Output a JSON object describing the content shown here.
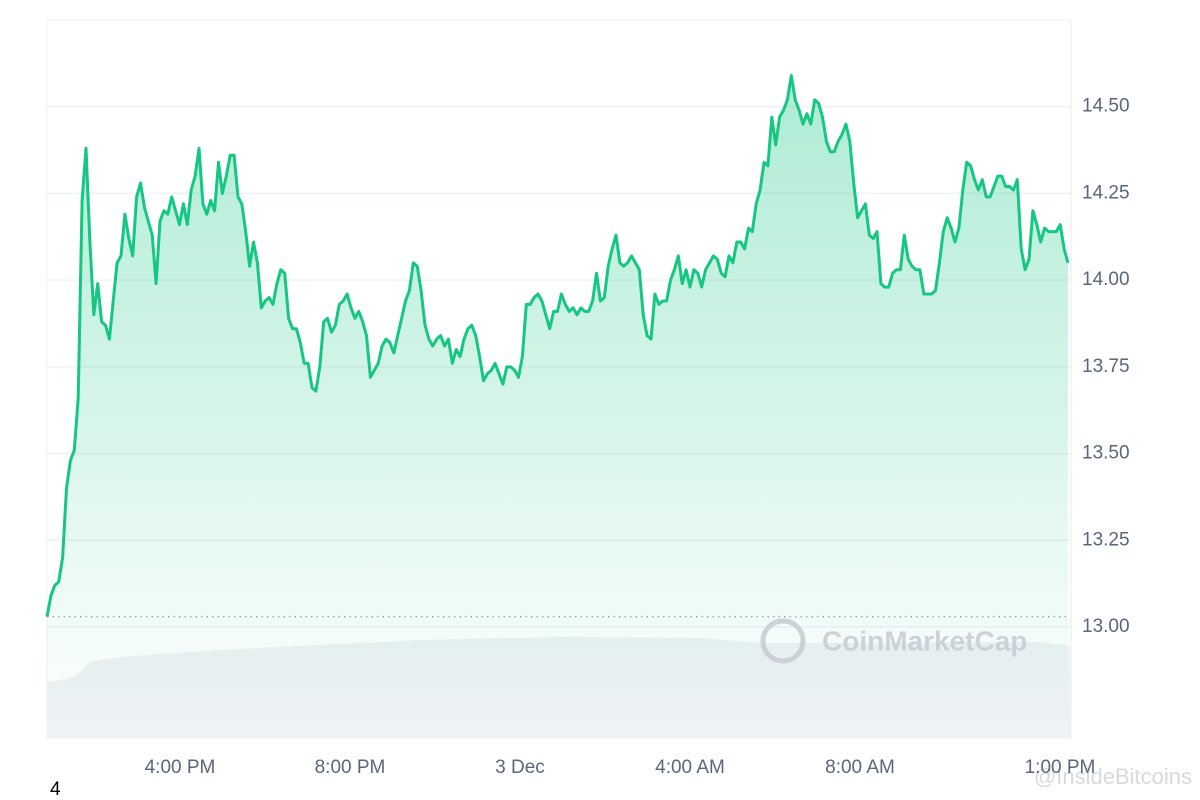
{
  "chart_data": {
    "type": "line",
    "color": "#16c784",
    "ylim": [
      12.68,
      14.75
    ],
    "yticks": [
      {
        "value": 13,
        "label": "13.00"
      },
      {
        "value": 13.25,
        "label": "13.25"
      },
      {
        "value": 13.5,
        "label": "13.50"
      },
      {
        "value": 13.75,
        "label": "13.75"
      },
      {
        "value": 14,
        "label": "14.00"
      },
      {
        "value": 14.25,
        "label": "14.25"
      },
      {
        "value": 14.5,
        "label": "14.50"
      }
    ],
    "xtick_labels": [
      "4:00 PM",
      "8:00 PM",
      "3 Dec",
      "4:00 AM",
      "8:00 AM",
      "1:00 PM"
    ],
    "grid": true,
    "reference_line": 13.03,
    "values": [
      13.03,
      13.09,
      13.12,
      13.13,
      13.2,
      13.4,
      13.48,
      13.51,
      13.66,
      14.23,
      14.38,
      14.11,
      13.9,
      13.99,
      13.88,
      13.87,
      13.83,
      13.94,
      14.05,
      14.07,
      14.19,
      14.12,
      14.07,
      14.24,
      14.28,
      14.21,
      14.17,
      14.13,
      13.99,
      14.17,
      14.2,
      14.19,
      14.24,
      14.2,
      14.16,
      14.22,
      14.16,
      14.26,
      14.3,
      14.38,
      14.22,
      14.19,
      14.23,
      14.2,
      14.34,
      14.25,
      14.3,
      14.36,
      14.36,
      14.24,
      14.22,
      14.14,
      14.04,
      14.11,
      14.05,
      13.92,
      13.94,
      13.95,
      13.93,
      13.99,
      14.03,
      14.02,
      13.89,
      13.86,
      13.86,
      13.82,
      13.76,
      13.76,
      13.69,
      13.68,
      13.75,
      13.88,
      13.89,
      13.85,
      13.87,
      13.93,
      13.94,
      13.96,
      13.92,
      13.89,
      13.91,
      13.88,
      13.84,
      13.72,
      13.74,
      13.76,
      13.81,
      13.83,
      13.82,
      13.79,
      13.84,
      13.89,
      13.94,
      13.97,
      14.05,
      14.04,
      13.97,
      13.87,
      13.83,
      13.81,
      13.83,
      13.84,
      13.81,
      13.83,
      13.76,
      13.8,
      13.78,
      13.83,
      13.86,
      13.87,
      13.84,
      13.78,
      13.71,
      13.73,
      13.74,
      13.76,
      13.73,
      13.7,
      13.75,
      13.75,
      13.74,
      13.72,
      13.78,
      13.93,
      13.93,
      13.95,
      13.96,
      13.94,
      13.9,
      13.86,
      13.91,
      13.91,
      13.96,
      13.93,
      13.91,
      13.92,
      13.9,
      13.92,
      13.91,
      13.91,
      13.94,
      14.02,
      13.94,
      13.95,
      14.04,
      14.09,
      14.13,
      14.05,
      14.04,
      14.05,
      14.07,
      14.05,
      14.03,
      13.9,
      13.84,
      13.83,
      13.96,
      13.93,
      13.94,
      13.94,
      14.0,
      14.03,
      14.07,
      13.99,
      14.03,
      13.98,
      14.03,
      14.02,
      13.98,
      14.03,
      14.05,
      14.07,
      14.06,
      14.02,
      14.01,
      14.07,
      14.05,
      14.11,
      14.11,
      14.09,
      14.15,
      14.14,
      14.22,
      14.26,
      14.34,
      14.33,
      14.47,
      14.39,
      14.47,
      14.49,
      14.52,
      14.59,
      14.52,
      14.49,
      14.45,
      14.48,
      14.45,
      14.52,
      14.51,
      14.47,
      14.4,
      14.37,
      14.37,
      14.4,
      14.42,
      14.45,
      14.4,
      14.28,
      14.18,
      14.2,
      14.22,
      14.13,
      14.12,
      14.14,
      13.99,
      13.98,
      13.98,
      14.02,
      14.03,
      14.03,
      14.13,
      14.06,
      14.04,
      14.03,
      14.03,
      13.96,
      13.96,
      13.96,
      13.97,
      14.05,
      14.14,
      14.18,
      14.15,
      14.11,
      14.15,
      14.26,
      14.34,
      14.33,
      14.29,
      14.26,
      14.29,
      14.24,
      14.24,
      14.27,
      14.3,
      14.3,
      14.27,
      14.27,
      14.26,
      14.29,
      14.09,
      14.03,
      14.06,
      14.2,
      14.16,
      14.11,
      14.15,
      14.14,
      14.14,
      14.14,
      14.16,
      14.09,
      14.05
    ]
  },
  "watermarks": {
    "brand": "CoinMarketCap",
    "source": "@InsideBitcoins"
  },
  "footer": {
    "page_number": "4"
  }
}
